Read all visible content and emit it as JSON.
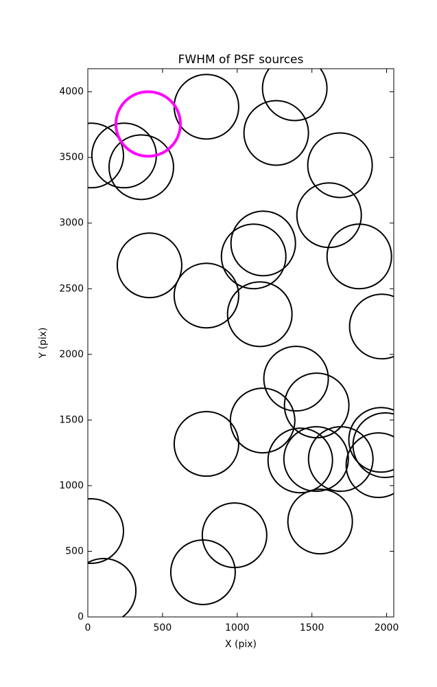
{
  "chart_data": {
    "type": "scatter",
    "title": "FWHM of PSF sources",
    "x_label": "X (pix)",
    "y_label": "Y (pix)",
    "xlim": [
      0,
      2048
    ],
    "ylim": [
      0,
      4176
    ],
    "xticks": [
      0,
      500,
      1000,
      1500,
      2000
    ],
    "yticks": [
      0,
      500,
      1000,
      1500,
      2000,
      2500,
      3000,
      3500,
      4000
    ],
    "grid": false,
    "series": [
      {
        "color": "#000000",
        "linewidth": 2,
        "x": [
          794,
          1385,
          1261,
          23,
          243,
          358,
          1688,
          1615,
          1174,
          1110,
          1817,
          413,
          794,
          1151,
          1968,
          1394,
          1532,
          1170,
          794,
          1963,
          1991,
          1422,
          1528,
          1693,
          1945,
          1555,
          982,
          23,
          106,
          771
        ],
        "y": [
          3886,
          4027,
          3687,
          3515,
          3515,
          3426,
          3441,
          3060,
          2845,
          2746,
          2746,
          2678,
          2448,
          2306,
          2212,
          1815,
          1611,
          1496,
          1318,
          1349,
          1308,
          1192,
          1203,
          1203,
          1156,
          727,
          622,
          654,
          199,
          340
        ]
      },
      {
        "color": "#ff00ff",
        "linewidth": 4,
        "x": [
          404
        ],
        "y": [
          3755
        ]
      }
    ]
  }
}
